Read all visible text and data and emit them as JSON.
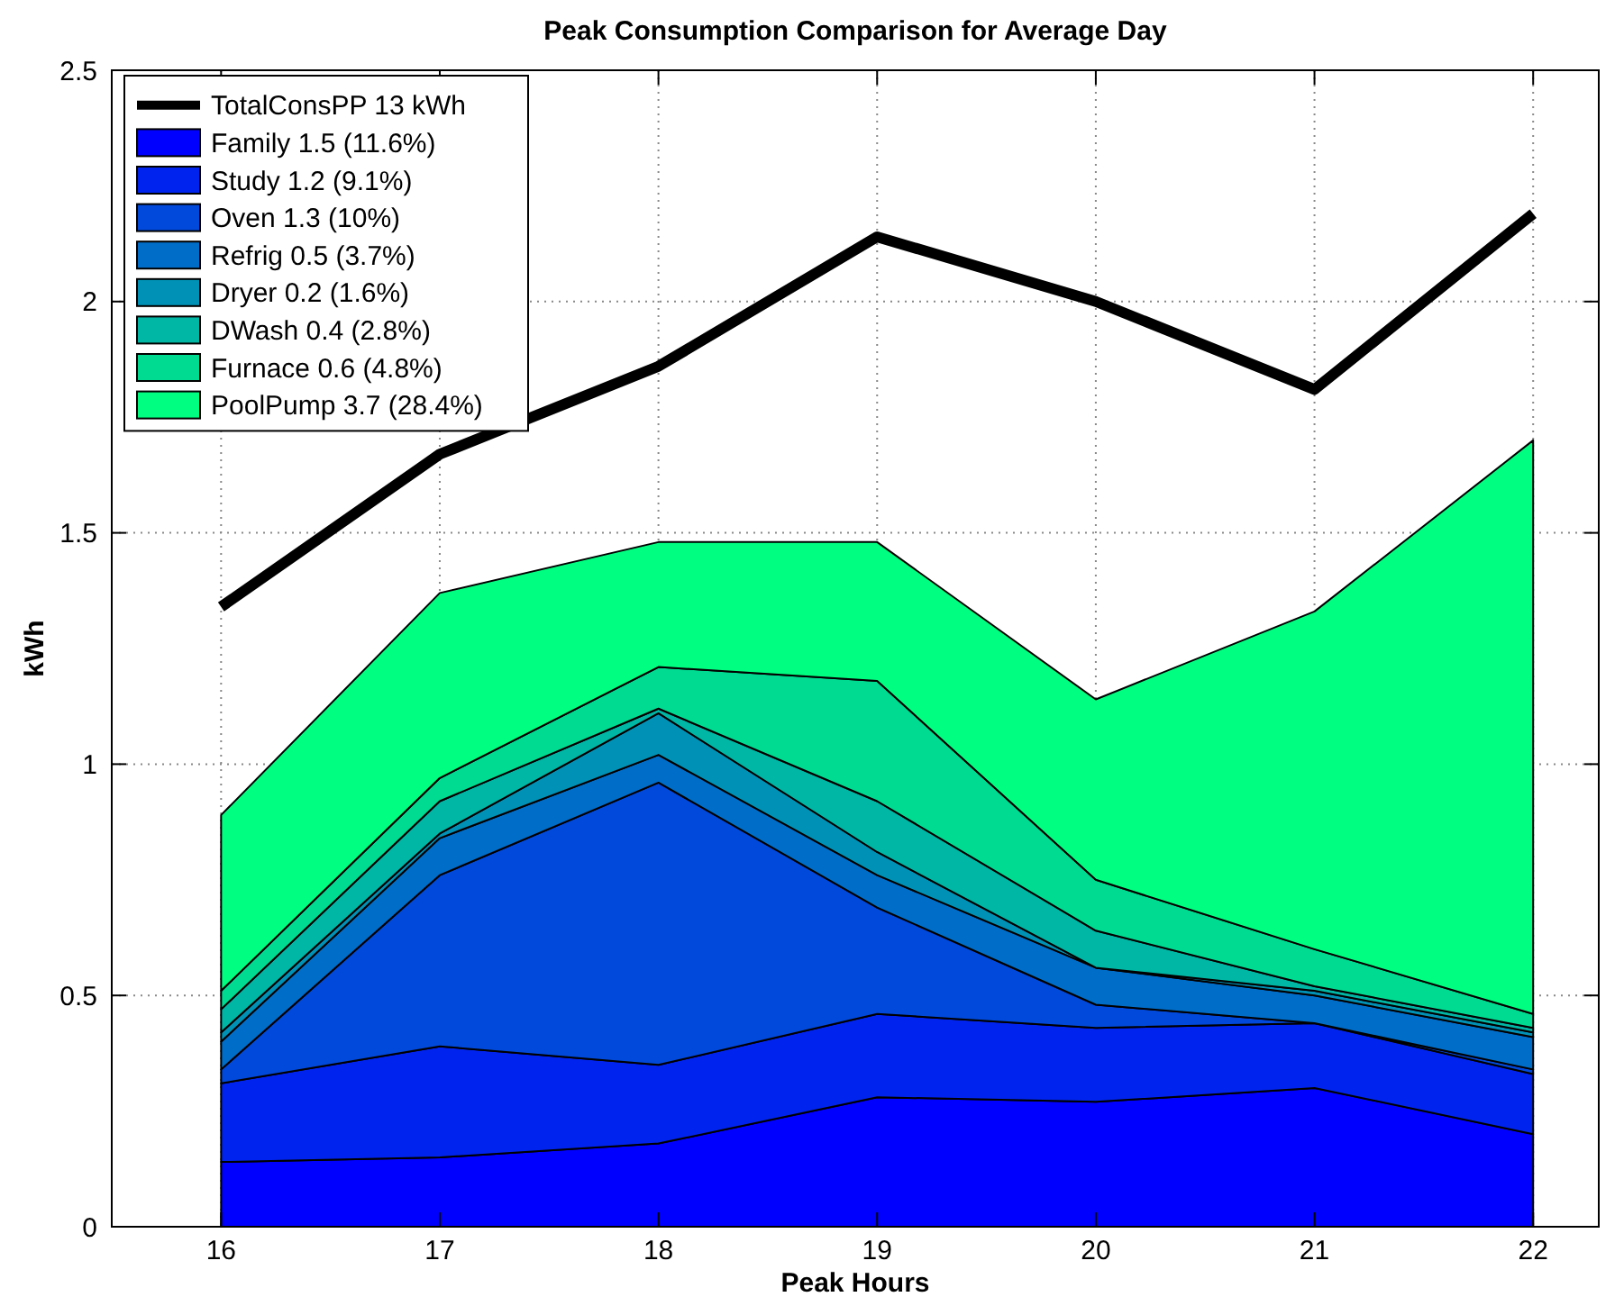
{
  "chart_data": {
    "type": "area",
    "stacked": true,
    "title": "Peak Consumption Comparison for Average Day",
    "xlabel": "Peak Hours",
    "ylabel": "kWh",
    "x": [
      16,
      17,
      18,
      19,
      20,
      21,
      22
    ],
    "xlim": [
      15.5,
      22.3
    ],
    "xticks": [
      16,
      17,
      18,
      19,
      20,
      21,
      22
    ],
    "ylim": [
      0,
      2.5
    ],
    "yticks": [
      0,
      0.5,
      1,
      1.5,
      2,
      2.5
    ],
    "grid": true,
    "legend": "top left",
    "series": [
      {
        "name": "TotalConsPP 13 kWh",
        "type": "line",
        "color": "#000000",
        "values": [
          1.34,
          1.67,
          1.86,
          2.14,
          2.0,
          1.81,
          2.19
        ]
      },
      {
        "name": "Family 1.5 (11.6%)",
        "color": "#0000ff",
        "values": [
          0.14,
          0.15,
          0.18,
          0.28,
          0.27,
          0.3,
          0.2
        ]
      },
      {
        "name": "Study 1.2 (9.1%)",
        "color": "#0024ed",
        "values": [
          0.17,
          0.24,
          0.17,
          0.18,
          0.16,
          0.14,
          0.13
        ]
      },
      {
        "name": "Oven 1.3 (10%)",
        "color": "#0049db",
        "values": [
          0.03,
          0.37,
          0.61,
          0.23,
          0.05,
          0.0,
          0.01
        ]
      },
      {
        "name": "Refrig 0.5 (3.7%)",
        "color": "#006dc9",
        "values": [
          0.06,
          0.08,
          0.06,
          0.07,
          0.08,
          0.06,
          0.07
        ]
      },
      {
        "name": "Dryer 0.2 (1.6%)",
        "color": "#0092b6",
        "values": [
          0.02,
          0.01,
          0.09,
          0.05,
          0.0,
          0.01,
          0.01
        ]
      },
      {
        "name": "DWash 0.4 (2.8%)",
        "color": "#00b6a4",
        "values": [
          0.05,
          0.07,
          0.01,
          0.11,
          0.08,
          0.01,
          0.01
        ]
      },
      {
        "name": "Furnace 0.6 (4.8%)",
        "color": "#00db92",
        "values": [
          0.04,
          0.05,
          0.09,
          0.26,
          0.11,
          0.08,
          0.03
        ]
      },
      {
        "name": "PoolPump 3.7 (28.4%)",
        "color": "#00ff80",
        "values": [
          0.38,
          0.4,
          0.27,
          0.3,
          0.39,
          0.73,
          1.24
        ]
      }
    ]
  }
}
